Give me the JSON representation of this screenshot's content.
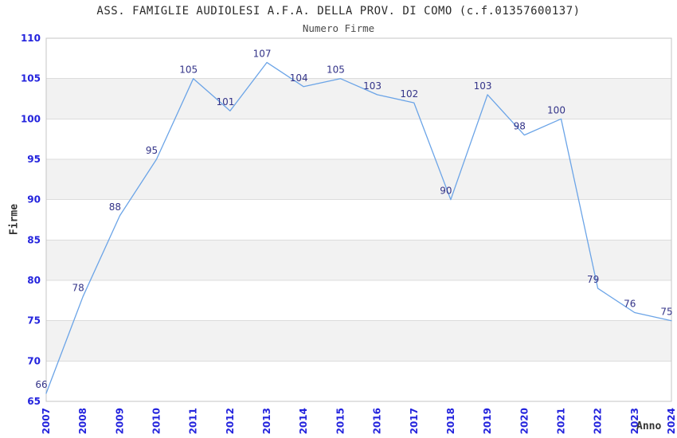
{
  "header": {
    "title": "ASS. FAMIGLIE AUDIOLESI A.F.A. DELLA PROV. DI COMO (c.f.01357600137)",
    "subtitle": "Numero Firme"
  },
  "chart_data": {
    "type": "line",
    "title": "ASS. FAMIGLIE AUDIOLESI A.F.A. DELLA PROV. DI COMO (c.f.01357600137)",
    "subtitle": "Numero Firme",
    "xlabel": "Anno",
    "ylabel": "Firme",
    "categories": [
      "2007",
      "2008",
      "2009",
      "2010",
      "2011",
      "2012",
      "2013",
      "2014",
      "2015",
      "2016",
      "2017",
      "2018",
      "2019",
      "2020",
      "2021",
      "2022",
      "2023",
      "2024"
    ],
    "series": [
      {
        "name": "Numero Firme",
        "values": [
          66,
          78,
          88,
          95,
          105,
          101,
          107,
          104,
          105,
          103,
          102,
          90,
          103,
          98,
          100,
          79,
          76,
          75
        ]
      }
    ],
    "ylim": [
      65,
      110
    ],
    "ytick_step": 5,
    "yticks": [
      65,
      70,
      75,
      80,
      85,
      90,
      95,
      100,
      105,
      110
    ],
    "grid": "horizontal",
    "alternating_bands": true,
    "legend": "none",
    "data_labels": true,
    "x_tick_rotation": -90,
    "colors": {
      "line": "#6ba4e7",
      "tick_label": "#2323dd",
      "data_label": "#333388",
      "band": "#f2f2f2",
      "grid": "#dcdcdc",
      "frame": "#c4c4c4",
      "title": "#2b2b2b",
      "axis_title": "#333333",
      "background": "#ffffff"
    }
  }
}
